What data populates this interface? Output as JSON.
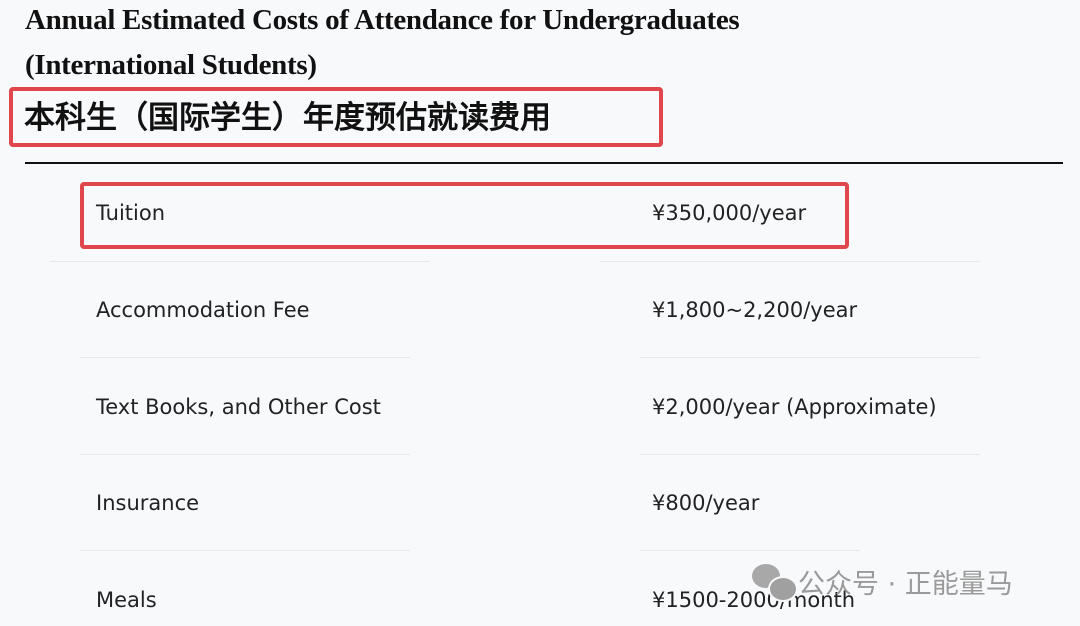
{
  "title": {
    "line1": "Annual Estimated Costs of Attendance for Undergraduates",
    "line2": "(International Students)",
    "chinese": "本科生（国际学生）年度预估就读费用"
  },
  "rows": [
    {
      "label": "Tuition",
      "value": "¥350,000/year"
    },
    {
      "label": "Accommodation Fee",
      "value": "¥1,800~2,200/year"
    },
    {
      "label": "Text Books, and Other Cost",
      "value": "¥2,000/year (Approximate)"
    },
    {
      "label": "Insurance",
      "value": "¥800/year"
    },
    {
      "label": "Meals",
      "value": "¥1500-2000/month"
    }
  ],
  "watermark": {
    "icon": "wechat-icon",
    "text": "公众号 · 正能量马"
  },
  "colors": {
    "highlight": "#e0474c"
  }
}
